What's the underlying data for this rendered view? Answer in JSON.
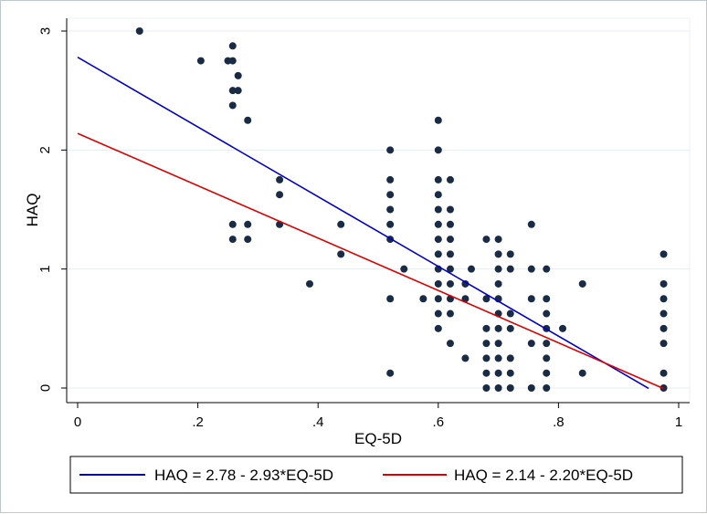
{
  "chart_data": {
    "type": "scatter",
    "xlabel": "EQ-5D",
    "ylabel": "HAQ",
    "xlim": [
      0,
      1
    ],
    "ylim": [
      0,
      3
    ],
    "x_ticks": [
      {
        "value": 0,
        "label": "0"
      },
      {
        "value": 0.2,
        "label": ".2"
      },
      {
        "value": 0.4,
        "label": ".4"
      },
      {
        "value": 0.6,
        "label": ".6"
      },
      {
        "value": 0.8,
        "label": ".8"
      },
      {
        "value": 1,
        "label": "1"
      }
    ],
    "y_ticks": [
      {
        "value": 0,
        "label": "0"
      },
      {
        "value": 1,
        "label": "1"
      },
      {
        "value": 2,
        "label": "2"
      },
      {
        "value": 3,
        "label": "3"
      }
    ],
    "grid": "horizontal",
    "legend_position": "bottom",
    "points": [
      [
        0.103,
        3.0
      ],
      [
        0.205,
        2.75
      ],
      [
        0.25,
        2.75
      ],
      [
        0.258,
        2.75
      ],
      [
        0.258,
        2.875
      ],
      [
        0.258,
        2.5
      ],
      [
        0.258,
        2.375
      ],
      [
        0.267,
        2.625
      ],
      [
        0.267,
        2.5
      ],
      [
        0.283,
        2.25
      ],
      [
        0.258,
        1.375
      ],
      [
        0.258,
        1.25
      ],
      [
        0.283,
        1.375
      ],
      [
        0.283,
        1.25
      ],
      [
        0.336,
        1.75
      ],
      [
        0.336,
        1.625
      ],
      [
        0.336,
        1.375
      ],
      [
        0.386,
        0.875
      ],
      [
        0.438,
        1.375
      ],
      [
        0.438,
        1.125
      ],
      [
        0.52,
        2.0
      ],
      [
        0.52,
        1.75
      ],
      [
        0.52,
        1.625
      ],
      [
        0.52,
        1.5
      ],
      [
        0.52,
        1.375
      ],
      [
        0.52,
        1.25
      ],
      [
        0.52,
        0.75
      ],
      [
        0.52,
        0.125
      ],
      [
        0.543,
        1.0
      ],
      [
        0.575,
        0.75
      ],
      [
        0.6,
        2.25
      ],
      [
        0.6,
        2.0
      ],
      [
        0.6,
        1.75
      ],
      [
        0.6,
        1.625
      ],
      [
        0.6,
        1.5
      ],
      [
        0.6,
        1.375
      ],
      [
        0.6,
        1.25
      ],
      [
        0.6,
        1.125
      ],
      [
        0.6,
        1.0
      ],
      [
        0.6,
        0.875
      ],
      [
        0.6,
        0.75
      ],
      [
        0.6,
        0.625
      ],
      [
        0.6,
        0.5
      ],
      [
        0.62,
        1.75
      ],
      [
        0.62,
        1.5
      ],
      [
        0.62,
        1.375
      ],
      [
        0.62,
        1.25
      ],
      [
        0.62,
        1.125
      ],
      [
        0.62,
        1.0
      ],
      [
        0.62,
        0.875
      ],
      [
        0.62,
        0.75
      ],
      [
        0.62,
        0.625
      ],
      [
        0.62,
        0.375
      ],
      [
        0.645,
        0.875
      ],
      [
        0.645,
        0.75
      ],
      [
        0.645,
        0.25
      ],
      [
        0.655,
        1.0
      ],
      [
        0.68,
        1.25
      ],
      [
        0.68,
        0.75
      ],
      [
        0.68,
        0.5
      ],
      [
        0.68,
        0.375
      ],
      [
        0.68,
        0.25
      ],
      [
        0.68,
        0.125
      ],
      [
        0.68,
        0.0
      ],
      [
        0.7,
        1.25
      ],
      [
        0.7,
        1.125
      ],
      [
        0.7,
        1.0
      ],
      [
        0.7,
        0.875
      ],
      [
        0.7,
        0.75
      ],
      [
        0.7,
        0.625
      ],
      [
        0.7,
        0.5
      ],
      [
        0.7,
        0.375
      ],
      [
        0.7,
        0.25
      ],
      [
        0.7,
        0.125
      ],
      [
        0.7,
        0.0
      ],
      [
        0.72,
        1.125
      ],
      [
        0.72,
        1.0
      ],
      [
        0.72,
        0.625
      ],
      [
        0.72,
        0.5
      ],
      [
        0.72,
        0.25
      ],
      [
        0.72,
        0.125
      ],
      [
        0.72,
        0.0
      ],
      [
        0.755,
        1.375
      ],
      [
        0.755,
        1.0
      ],
      [
        0.755,
        0.75
      ],
      [
        0.755,
        0.375
      ],
      [
        0.755,
        0.0
      ],
      [
        0.78,
        1.0
      ],
      [
        0.78,
        0.75
      ],
      [
        0.78,
        0.625
      ],
      [
        0.78,
        0.5
      ],
      [
        0.78,
        0.375
      ],
      [
        0.78,
        0.25
      ],
      [
        0.78,
        0.125
      ],
      [
        0.78,
        0.0
      ],
      [
        0.807,
        0.5
      ],
      [
        0.84,
        0.875
      ],
      [
        0.84,
        0.125
      ],
      [
        0.975,
        1.125
      ],
      [
        0.975,
        0.875
      ],
      [
        0.975,
        0.75
      ],
      [
        0.975,
        0.625
      ],
      [
        0.975,
        0.5
      ],
      [
        0.975,
        0.375
      ],
      [
        0.975,
        0.125
      ],
      [
        0.975,
        0.0
      ]
    ],
    "point_color": "#1a2b45",
    "fit_lines": [
      {
        "label": "HAQ = 2.78 - 2.93*EQ-5D",
        "intercept": 2.78,
        "slope": -2.93,
        "x_range": [
          0,
          0.95
        ],
        "color": "#0000cc"
      },
      {
        "label": "HAQ = 2.14 - 2.20*EQ-5D",
        "intercept": 2.14,
        "slope": -2.2,
        "x_range": [
          0,
          0.975
        ],
        "color": "#dd0000"
      }
    ]
  }
}
